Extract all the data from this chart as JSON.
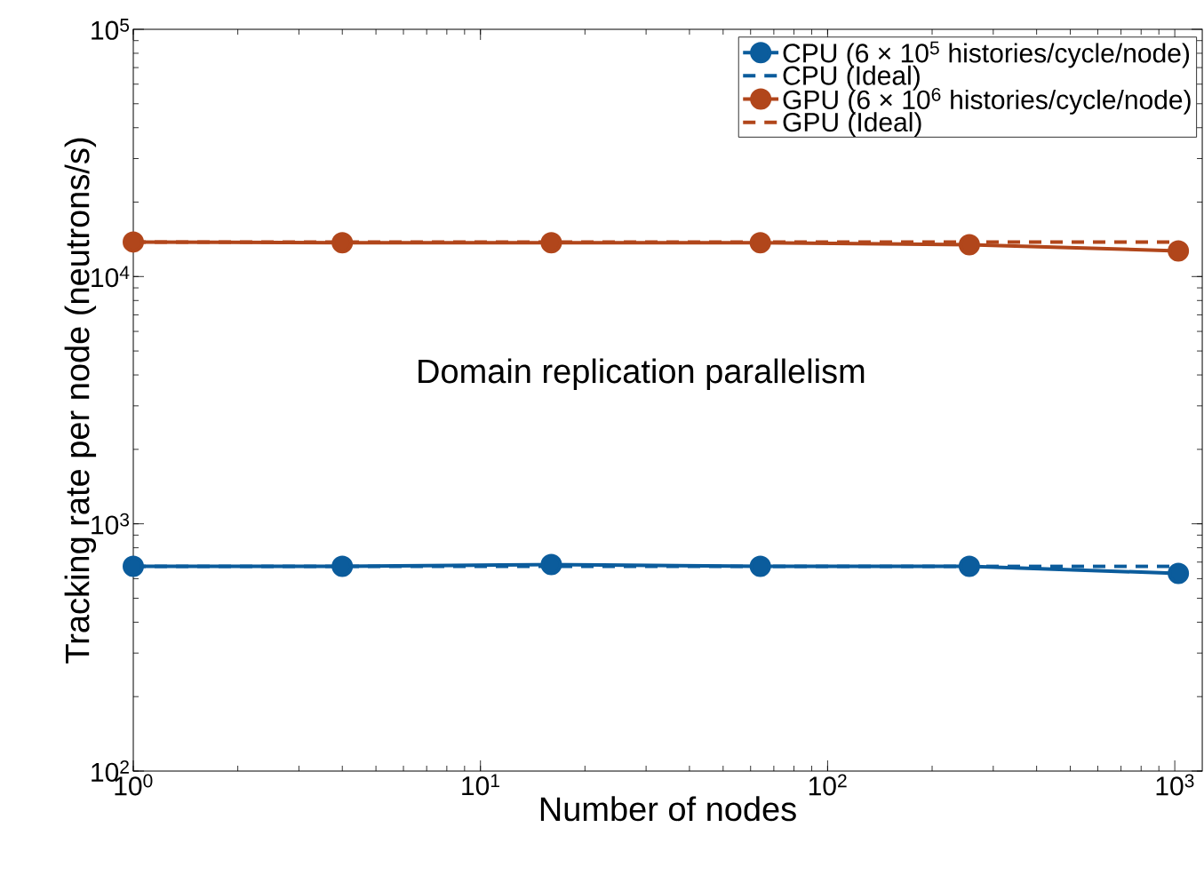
{
  "chart_data": {
    "type": "line",
    "xlabel": "Number of nodes",
    "ylabel": "Tracking rate per node (neutrons/s)",
    "annotations": [
      "Domain replication parallelism"
    ],
    "x": [
      1,
      4,
      16,
      64,
      256,
      1024
    ],
    "log": "xy",
    "xlim": [
      1,
      1200
    ],
    "ylim": [
      100,
      100000
    ],
    "xticks": [
      {
        "value": 1,
        "label": "10$^{0}$"
      },
      {
        "value": 10,
        "label": "10$^{1}$"
      },
      {
        "value": 100,
        "label": "10$^{2}$"
      },
      {
        "value": 1000,
        "label": "10$^{3}$"
      }
    ],
    "yticks": [
      {
        "value": 100,
        "label": "10$^{2}$"
      },
      {
        "value": 1000,
        "label": "10$^{3}$"
      },
      {
        "value": 10000,
        "label": "10$^{4}$"
      },
      {
        "value": 100000,
        "label": "10$^{5}$"
      }
    ],
    "grid": false,
    "legend": "top right",
    "series": [
      {
        "name": "CPU (6 × 10$^{5}$ histories/cycle/node)",
        "color": "#0b5c9c",
        "marker": "circle",
        "line_style": "solid",
        "values": [
          673,
          673,
          684,
          673,
          673,
          630
        ]
      },
      {
        "name": "CPU (Ideal)",
        "color": "#0b5c9c",
        "marker": "none",
        "line_style": "dashed",
        "values": [
          673,
          673,
          673,
          673,
          673,
          673
        ]
      },
      {
        "name": "GPU (6 × 10$^{6}$ histories/cycle/node)",
        "color": "#b1461b",
        "marker": "circle",
        "line_style": "solid",
        "values": [
          13800,
          13700,
          13700,
          13700,
          13450,
          12700
        ]
      },
      {
        "name": "GPU (Ideal)",
        "color": "#b1461b",
        "marker": "none",
        "line_style": "dashed",
        "values": [
          13800,
          13800,
          13800,
          13800,
          13800,
          13800
        ]
      }
    ]
  }
}
